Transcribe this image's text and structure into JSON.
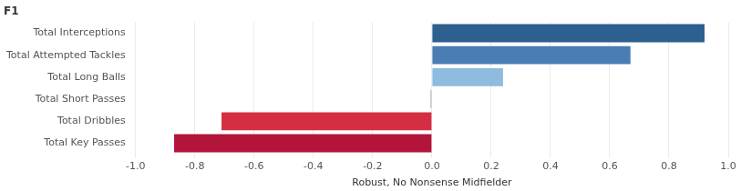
{
  "chart_data": {
    "type": "bar",
    "orientation": "horizontal",
    "title": "F1",
    "x_label": "Robust, No Nonsense Midfielder",
    "categories": [
      "Total Interceptions",
      "Total Attempted Tackles",
      "Total Long Balls",
      "Total Short Passes",
      "Total Dribbles",
      "Total Key Passes"
    ],
    "values": [
      0.92,
      0.67,
      0.24,
      -0.005,
      -0.71,
      -0.87
    ],
    "colors": [
      "#2d5f8f",
      "#4a7db3",
      "#8ebbde",
      "#b8b8b8",
      "#d42e42",
      "#b3143a"
    ],
    "xlim": [
      -1,
      1
    ],
    "xticks": [
      {
        "value": -1,
        "label": "-1.0"
      },
      -0.8,
      -0.6,
      -0.4,
      -0.2,
      {
        "value": 0,
        "label": "0.0"
      },
      0.2,
      0.4,
      0.6,
      0.8,
      {
        "value": 1,
        "label": "1.0"
      }
    ],
    "grid": true
  }
}
